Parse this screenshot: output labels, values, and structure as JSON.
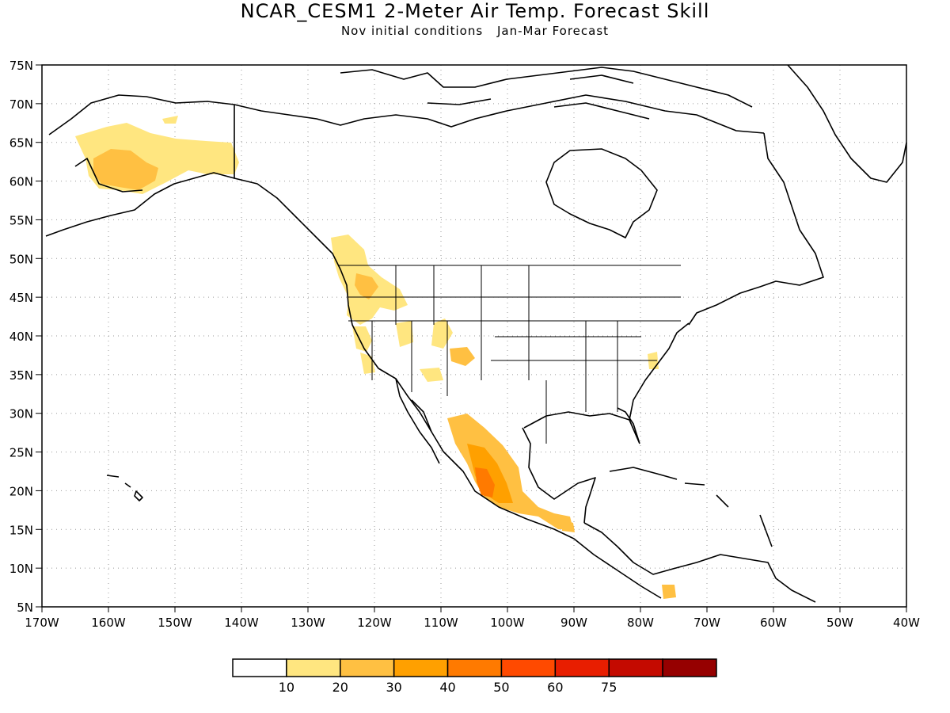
{
  "title": "NCAR_CESM1 2-Meter Air Temp. Forecast Skill",
  "subtitle": {
    "left": "Nov initial conditions",
    "right": "Jan-Mar Forecast"
  },
  "map": {
    "region": "North America",
    "lat_labels": [
      "75N",
      "70N",
      "65N",
      "60N",
      "55N",
      "50N",
      "45N",
      "40N",
      "35N",
      "30N",
      "25N",
      "20N",
      "15N",
      "10N",
      "5N"
    ],
    "lon_labels": [
      "170W",
      "160W",
      "150W",
      "140W",
      "130W",
      "120W",
      "110W",
      "100W",
      "90W",
      "80W",
      "70W",
      "60W",
      "50W",
      "40W"
    ],
    "lat_range": [
      5,
      75
    ],
    "lon_range": [
      -170,
      -40
    ],
    "grid": "dotted",
    "skill_regions": [
      {
        "area": "Alaska",
        "level": "10-20",
        "color": "#ffe680"
      },
      {
        "area": "Southwest Alaska",
        "level": "20-30",
        "color": "#ffc042"
      },
      {
        "area": "Pacific Northwest",
        "level": "10-30",
        "color": "#ffc042"
      },
      {
        "area": "Central Mexico",
        "level": "20-50",
        "color": "#ff7a00"
      },
      {
        "area": "Southern Mexico",
        "level": "20-40",
        "color": "#ffa000"
      }
    ]
  },
  "legend": {
    "colors": [
      "#ffffff",
      "#ffe680",
      "#ffc042",
      "#ffa000",
      "#ff7a00",
      "#ff4a00",
      "#e81e00",
      "#c40a00",
      "#960000"
    ],
    "labels": [
      "10",
      "20",
      "30",
      "40",
      "50",
      "60",
      "75"
    ]
  }
}
